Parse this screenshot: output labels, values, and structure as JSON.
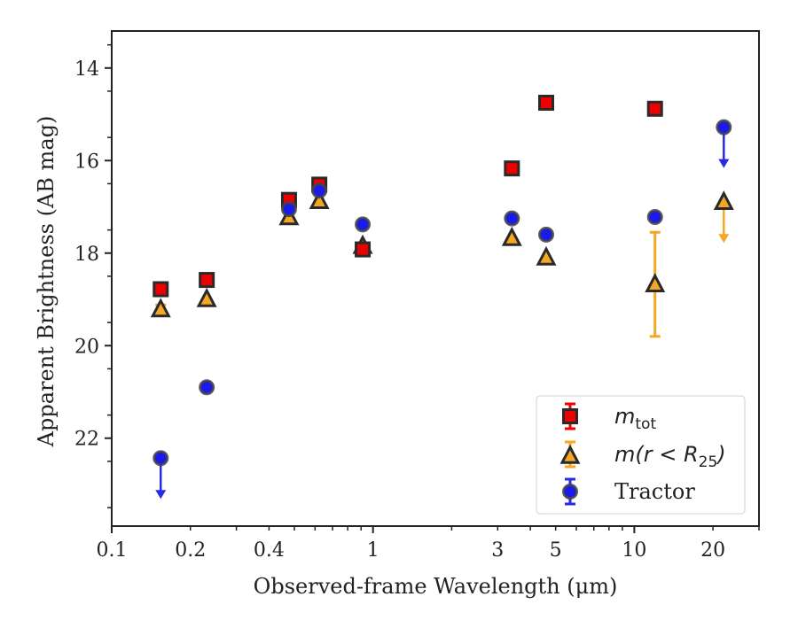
{
  "chart_data": {
    "type": "scatter",
    "title": "",
    "xlabel": "Observed-frame Wavelength (μm)",
    "ylabel": "Apparent Brightness (AB mag)",
    "xscale": "log",
    "xlim": [
      0.1,
      30
    ],
    "ylim": [
      23.9,
      13.2
    ],
    "y_inverted": true,
    "x_ticks": [
      0.1,
      0.2,
      0.4,
      1,
      3,
      5,
      10,
      20
    ],
    "x_tick_labels": [
      "0.1",
      "0.2",
      "0.4",
      "1",
      "3",
      "5",
      "10",
      "20"
    ],
    "y_ticks": [
      14,
      16,
      18,
      20,
      22
    ],
    "y_tick_labels": [
      "14",
      "16",
      "18",
      "20",
      "22"
    ],
    "grid": false,
    "legend_position": "lower-right",
    "series": [
      {
        "name": "m_tot",
        "marker": "square",
        "color": "#ee0000",
        "points": [
          {
            "x": 0.154,
            "y": 18.78
          },
          {
            "x": 0.231,
            "y": 18.58
          },
          {
            "x": 0.477,
            "y": 16.85
          },
          {
            "x": 0.623,
            "y": 16.52
          },
          {
            "x": 0.913,
            "y": 17.92
          },
          {
            "x": 3.4,
            "y": 16.17
          },
          {
            "x": 4.6,
            "y": 14.75
          },
          {
            "x": 12.0,
            "y": 14.88
          }
        ]
      },
      {
        "name": "m(r < R25)",
        "marker": "triangle",
        "color": "#f5a623",
        "points": [
          {
            "x": 0.154,
            "y": 19.22,
            "yerr": 0.1
          },
          {
            "x": 0.231,
            "y": 19.0
          },
          {
            "x": 0.477,
            "y": 17.23
          },
          {
            "x": 0.623,
            "y": 16.88
          },
          {
            "x": 0.913,
            "y": 17.85
          },
          {
            "x": 3.4,
            "y": 17.68
          },
          {
            "x": 4.6,
            "y": 18.1
          },
          {
            "x": 12.0,
            "y": 18.68,
            "err_low": 17.55,
            "err_high": 19.8
          },
          {
            "x": 22.0,
            "y": 16.9,
            "upper_limit": true
          }
        ]
      },
      {
        "name": "Tractor",
        "marker": "circle",
        "color": "#1a1aee",
        "points": [
          {
            "x": 0.154,
            "y": 22.43,
            "upper_limit": true
          },
          {
            "x": 0.231,
            "y": 20.9
          },
          {
            "x": 0.477,
            "y": 17.05
          },
          {
            "x": 0.623,
            "y": 16.65
          },
          {
            "x": 0.913,
            "y": 17.38
          },
          {
            "x": 3.4,
            "y": 17.25
          },
          {
            "x": 4.6,
            "y": 17.6
          },
          {
            "x": 12.0,
            "y": 17.22
          },
          {
            "x": 22.0,
            "y": 15.28,
            "upper_limit": true
          }
        ]
      }
    ]
  },
  "legend": {
    "entries": [
      {
        "math": "m",
        "sub": "tot",
        "text": ""
      },
      {
        "math": "m(r < R",
        "sub": "25",
        "math_after": ")",
        "text": ""
      },
      {
        "math": "",
        "sub": "",
        "text": "Tractor"
      }
    ]
  }
}
